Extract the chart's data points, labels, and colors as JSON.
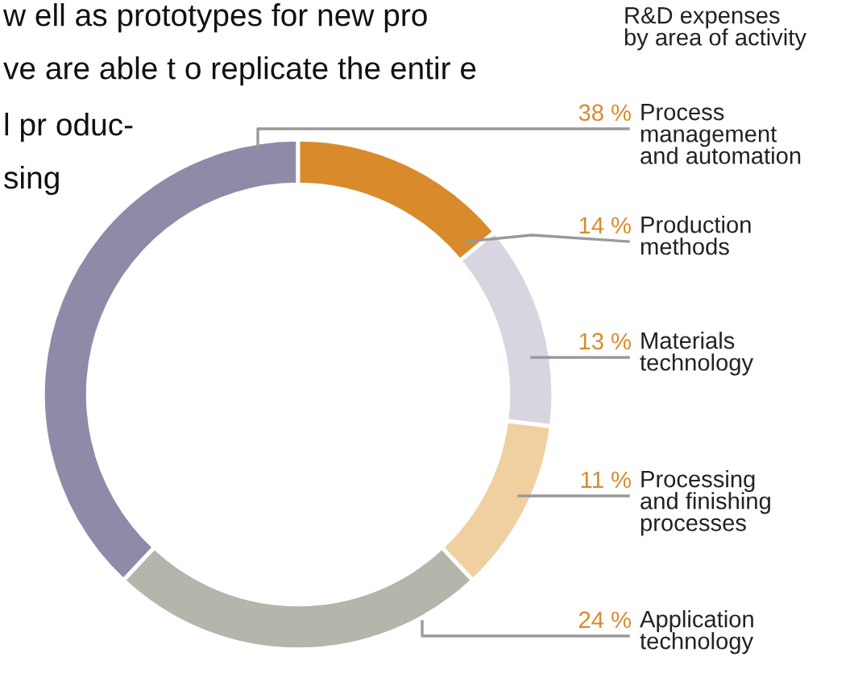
{
  "chart_data": {
    "type": "donut",
    "title": "R&D expenses\nby area of activity",
    "categories": [
      "Process\nmanagement\nand automation",
      "Production\nmethods",
      "Materials\ntechnology",
      "Processing\nand finishing\nprocesses",
      "Application\ntechnology"
    ],
    "values": [
      38,
      14,
      13,
      11,
      24
    ],
    "value_labels": [
      "38 %",
      "14 %",
      "13 %",
      "11 %",
      "24 %"
    ],
    "colors": [
      "#8e8aa8",
      "#d98a2a",
      "#d8d5e0",
      "#f0cfa0",
      "#b4b5ab"
    ],
    "annotations": [
      "w ell as prototypes for new pro",
      "ve are able t o replicate the entir e",
      "l pr oduc-",
      "sing"
    ]
  }
}
